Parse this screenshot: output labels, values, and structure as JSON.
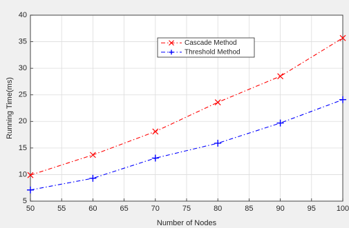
{
  "chart_data": {
    "type": "line",
    "x_label": "Number of Nodes",
    "y_label": "Running Time(ms)",
    "x": [
      50,
      60,
      70,
      80,
      90,
      100
    ],
    "series": [
      {
        "name": "Cascade Method",
        "color": "#ff0000",
        "marker": "x",
        "values": [
          9.9,
          13.7,
          18.1,
          23.6,
          28.5,
          35.7
        ]
      },
      {
        "name": "Threshold Method",
        "color": "#0000ff",
        "marker": "+",
        "values": [
          7.1,
          9.3,
          13.1,
          15.9,
          19.7,
          24.1
        ]
      }
    ],
    "xlim": [
      50,
      100
    ],
    "xticks": [
      50,
      55,
      60,
      65,
      70,
      75,
      80,
      85,
      90,
      95,
      100
    ],
    "ylim": [
      5,
      40
    ],
    "yticks": [
      5,
      10,
      15,
      20,
      25,
      30,
      35,
      40
    ],
    "grid": true,
    "legend": "top"
  }
}
